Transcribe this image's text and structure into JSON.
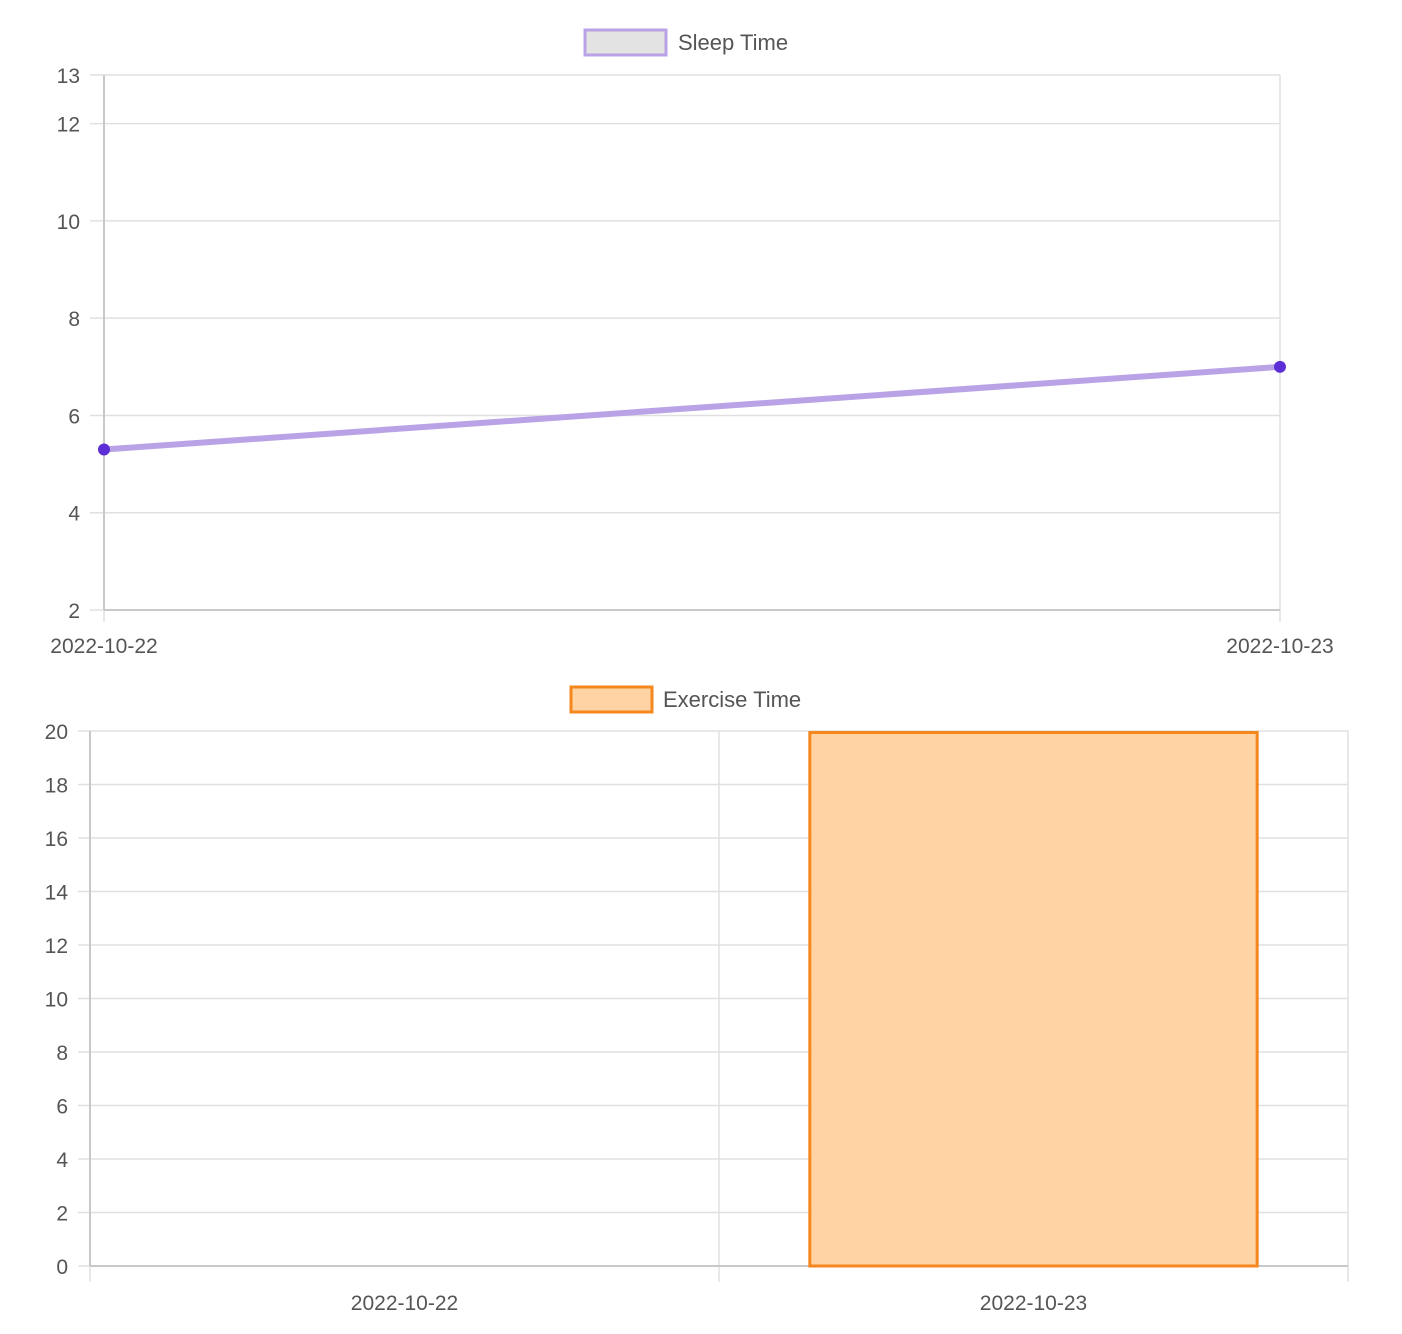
{
  "chart_data": [
    {
      "type": "line",
      "categories": [
        "2022-10-22",
        "2022-10-23"
      ],
      "series": [
        {
          "name": "Sleep Time",
          "values": [
            5.3,
            7.0
          ]
        }
      ],
      "ylim": [
        2,
        13
      ],
      "yticks": [
        "2",
        "4",
        "6",
        "8",
        "10",
        "12",
        "13"
      ],
      "grid": true,
      "legend": "top-center",
      "colors": {
        "line": "#b9a3e6",
        "point": "#5c2fd6",
        "legend_fill": "#e3e3e3",
        "legend_stroke": "#b9a3e6"
      }
    },
    {
      "type": "bar",
      "categories": [
        "2022-10-22",
        "2022-10-23"
      ],
      "series": [
        {
          "name": "Exercise Time",
          "values": [
            0,
            20
          ]
        }
      ],
      "ylim": [
        0,
        20
      ],
      "yticks": [
        "0",
        "2",
        "4",
        "6",
        "8",
        "10",
        "12",
        "14",
        "16",
        "18",
        "20"
      ],
      "grid": true,
      "legend": "top-center",
      "colors": {
        "fill": "#ffd3a3",
        "stroke": "#f5871f"
      }
    }
  ]
}
